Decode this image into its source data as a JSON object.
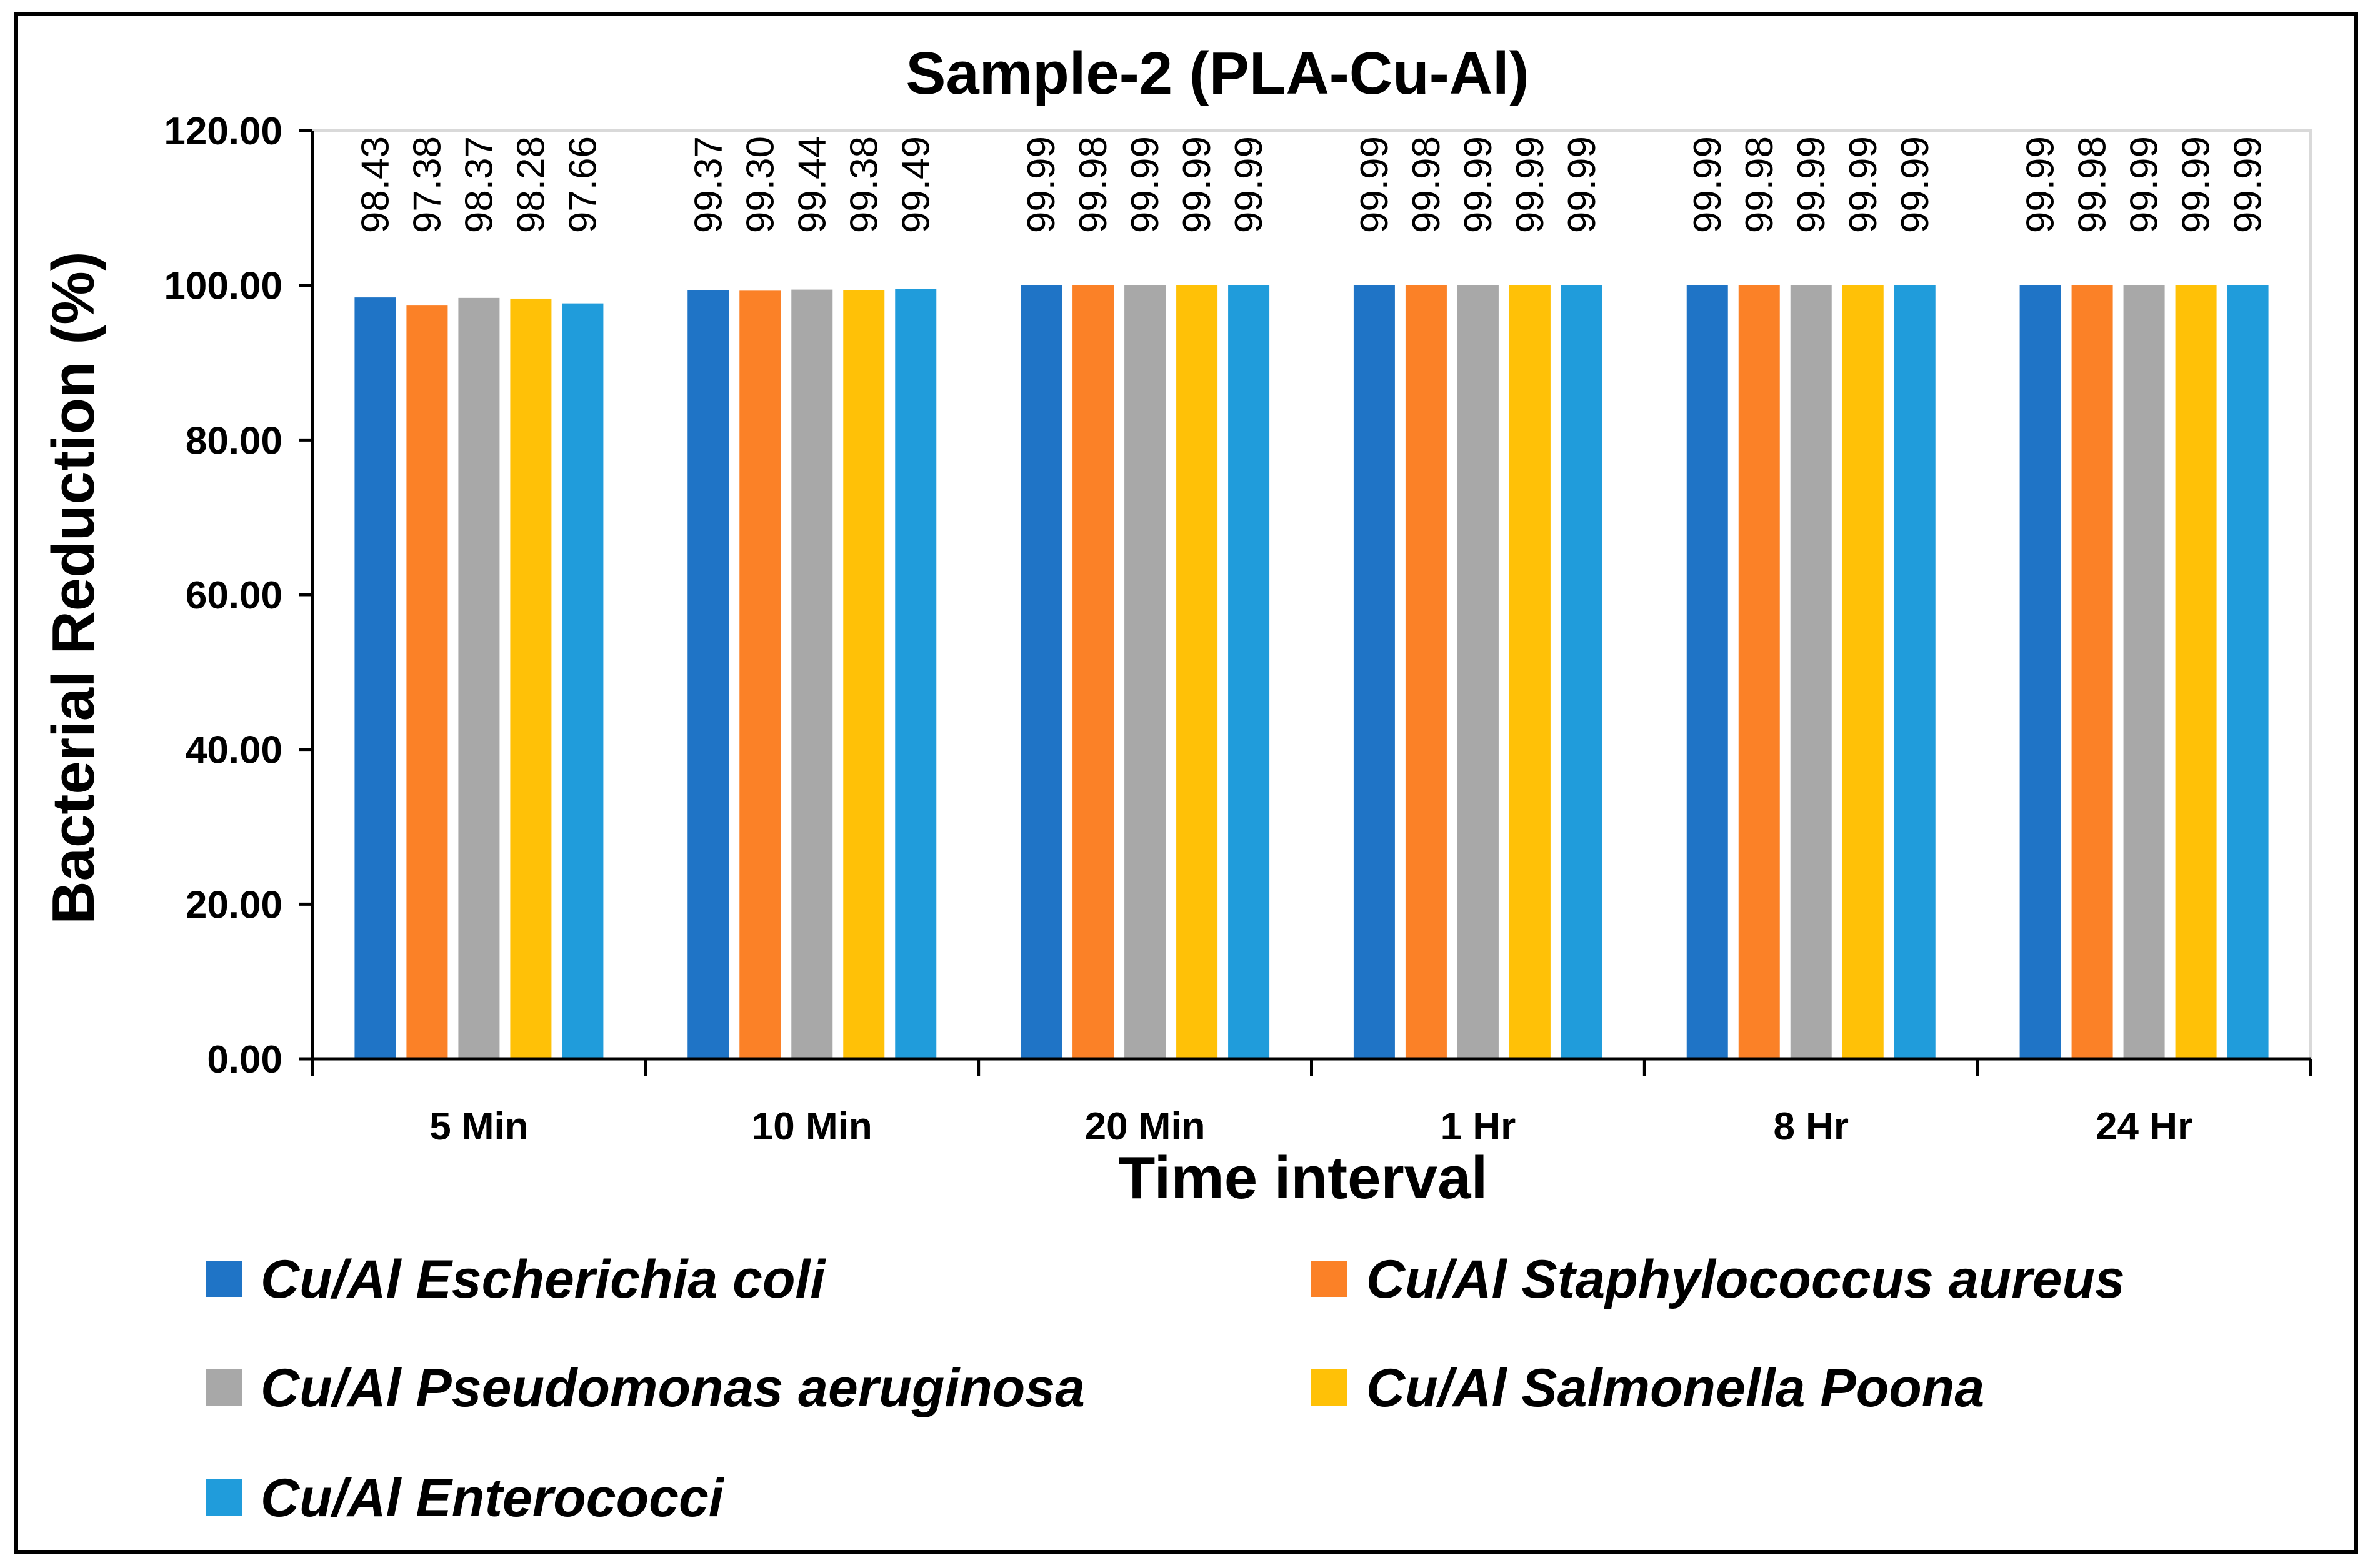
{
  "chart_data": {
    "type": "bar",
    "title": "Sample-2 (PLA-Cu-Al)",
    "xlabel": "Time interval",
    "ylabel": "Bacterial Reduction (%)",
    "ylim": [
      0,
      120
    ],
    "yticks": [
      "0.00",
      "20.00",
      "40.00",
      "60.00",
      "80.00",
      "100.00",
      "120.00"
    ],
    "grid": false,
    "legend_position": "bottom",
    "categories": [
      "5 Min",
      "10 Min",
      "20 Min",
      "1 Hr",
      "8 Hr",
      "24 Hr"
    ],
    "series": [
      {
        "name": "Cu/Al Escherichia coli",
        "color": "#1f74c6",
        "values": [
          98.43,
          99.37,
          99.99,
          99.99,
          99.99,
          99.99
        ],
        "labels": [
          "98.43",
          "99.37",
          "99.99",
          "99.99",
          "99.99",
          "99.99"
        ]
      },
      {
        "name": "Cu/Al Staphylococcus aureus",
        "color": "#fb8127",
        "values": [
          97.38,
          99.3,
          99.98,
          99.98,
          99.98,
          99.98
        ],
        "labels": [
          "97.38",
          "99.30",
          "99.98",
          "99.98",
          "99.98",
          "99.98"
        ]
      },
      {
        "name": "Cu/Al Pseudomonas aeruginosa",
        "color": "#a8a8a8",
        "values": [
          98.37,
          99.44,
          99.99,
          99.99,
          99.99,
          99.99
        ],
        "labels": [
          "98.37",
          "99.44",
          "99.99",
          "99.99",
          "99.99",
          "99.99"
        ]
      },
      {
        "name": "Cu/Al Salmonella Poona",
        "color": "#ffc107",
        "values": [
          98.28,
          99.38,
          99.99,
          99.99,
          99.99,
          99.99
        ],
        "labels": [
          "98.28",
          "99.38",
          "99.99",
          "99.99",
          "99.99",
          "99.99"
        ]
      },
      {
        "name": "Cu/Al Enterococci",
        "color": "#209cdb",
        "values": [
          97.66,
          99.49,
          99.99,
          99.99,
          99.99,
          99.99
        ],
        "labels": [
          "97.66",
          "99.49",
          "99.99",
          "99.99",
          "99.99",
          "99.99"
        ]
      }
    ]
  }
}
